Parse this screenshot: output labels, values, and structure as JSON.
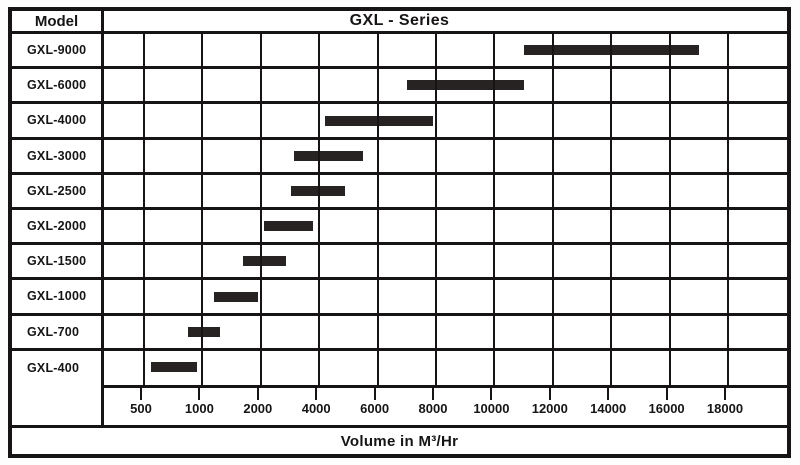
{
  "table": {
    "model_header": "Model"
  },
  "chart_data": {
    "type": "bar",
    "subtype": "horizontal-range-bars",
    "title": "GXL - Series",
    "xlabel": "Volume in M³/Hr",
    "x_ticks": [
      500,
      1000,
      2000,
      4000,
      6000,
      8000,
      10000,
      12000,
      14000,
      16000,
      18000
    ],
    "x_tick_labels": [
      "500",
      "1000",
      "2000",
      "4000",
      "6000",
      "8000",
      "10000",
      "12000",
      "14000",
      "16000",
      "18000"
    ],
    "x_scale": "segmented: consecutive ticks are equally spaced in pixels",
    "grid": true,
    "legend": "none",
    "bar_color": "#272323",
    "line_color": "#161414",
    "models": [
      {
        "label": "GXL-9000",
        "volume_min": 11000,
        "volume_max": 17000
      },
      {
        "label": "GXL-6000",
        "volume_min": 7000,
        "volume_max": 11000
      },
      {
        "label": "GXL-4000",
        "volume_min": 4200,
        "volume_max": 7900
      },
      {
        "label": "GXL-3000",
        "volume_min": 3150,
        "volume_max": 5500
      },
      {
        "label": "GXL-2500",
        "volume_min": 3050,
        "volume_max": 4900
      },
      {
        "label": "GXL-2000",
        "volume_min": 2100,
        "volume_max": 3800
      },
      {
        "label": "GXL-1500",
        "volume_min": 1700,
        "volume_max": 2850
      },
      {
        "label": "GXL-1000",
        "volume_min": 1200,
        "volume_max": 1950
      },
      {
        "label": "GXL-700",
        "volume_min": 880,
        "volume_max": 1300
      },
      {
        "label": "GXL-400",
        "volume_min": 560,
        "volume_max": 950
      }
    ]
  }
}
